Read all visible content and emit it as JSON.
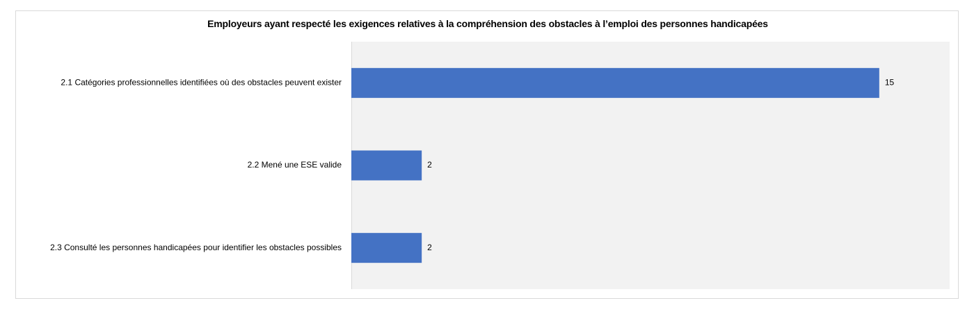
{
  "chart_data": {
    "type": "bar",
    "orientation": "horizontal",
    "title": "Employeurs ayant respecté les exigences relatives à la compréhension des obstacles à l’emploi des personnes handicapées",
    "categories": [
      "2.1 Catégories professionnelles identifiées où des obstacles peuvent exister",
      "2.2 Mené une ESE valide",
      "2.3 Consulté les personnes handicapées pour identifier les obstacles possibles"
    ],
    "values": [
      15,
      2,
      2
    ],
    "data_labels": [
      "15",
      "2",
      "2"
    ],
    "xlim": [
      0,
      17
    ],
    "grid": false,
    "legend": "none",
    "colors": {
      "bar": "#4472c4",
      "plot_background": "#f2f2f2",
      "axis_line": "#d9d9d9"
    }
  }
}
